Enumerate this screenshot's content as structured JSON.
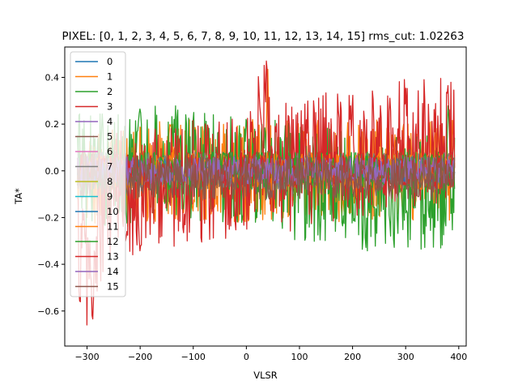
{
  "chart_data": {
    "type": "line",
    "title": "PIXEL: [0, 1, 2, 3, 4, 5, 6, 7, 8, 9, 10, 11, 12, 13, 14, 15]   rms_cut: 1.02263",
    "xlabel": "VLSR",
    "ylabel": "TA*",
    "xlim": [
      -342,
      414
    ],
    "ylim": [
      -0.75,
      0.53
    ],
    "xticks": [
      -300,
      -200,
      -100,
      0,
      100,
      200,
      300,
      400
    ],
    "yticks": [
      -0.6,
      -0.4,
      -0.2,
      0.0,
      0.2,
      0.4
    ],
    "grid": false,
    "legend_position": "upper-left",
    "x_range": [
      -318,
      392
    ],
    "series": [
      {
        "name": "0",
        "color": "#1f77b4",
        "center": [
          [
            -318,
            0.0
          ],
          [
            392,
            0.0
          ]
        ],
        "amp": 0.04
      },
      {
        "name": "1",
        "color": "#ff7f0e",
        "center": [
          [
            -318,
            -0.05
          ],
          [
            -150,
            0.0
          ],
          [
            30,
            0.0
          ],
          [
            50,
            0.0
          ],
          [
            392,
            0.0
          ]
        ],
        "amp": 0.22,
        "peaks": [
          [
            40,
            0.51
          ]
        ]
      },
      {
        "name": "2",
        "color": "#2ca02c",
        "center": [
          [
            -318,
            0.02
          ],
          [
            -250,
            0.0
          ],
          [
            -150,
            0.05
          ],
          [
            0,
            0.0
          ],
          [
            100,
            -0.05
          ],
          [
            250,
            -0.1
          ],
          [
            392,
            -0.08
          ]
        ],
        "amp": 0.25,
        "peaks": [
          [
            -200,
            0.3
          ],
          [
            -100,
            0.27
          ],
          [
            0,
            0.24
          ],
          [
            380,
            0.3
          ]
        ]
      },
      {
        "name": "3",
        "color": "#d62728",
        "center": [
          [
            -318,
            -0.3
          ],
          [
            -300,
            -0.4
          ],
          [
            -250,
            -0.1
          ],
          [
            -150,
            -0.05
          ],
          [
            0,
            0.0
          ],
          [
            35,
            0.2
          ],
          [
            50,
            0.0
          ],
          [
            200,
            0.08
          ],
          [
            300,
            0.12
          ],
          [
            392,
            0.15
          ]
        ],
        "amp": 0.28,
        "peaks": [
          [
            -290,
            -0.7
          ],
          [
            -200,
            -0.37
          ],
          [
            38,
            0.51
          ],
          [
            200,
            0.36
          ],
          [
            300,
            0.39
          ],
          [
            380,
            0.4
          ]
        ]
      },
      {
        "name": "4",
        "color": "#9467bd",
        "center": [
          [
            -318,
            0.0
          ],
          [
            392,
            0.0
          ]
        ],
        "amp": 0.05
      },
      {
        "name": "5",
        "color": "#8c564b",
        "center": [
          [
            -318,
            0.0
          ],
          [
            392,
            0.0
          ]
        ],
        "amp": 0.06
      },
      {
        "name": "6",
        "color": "#e377c2",
        "center": [
          [
            -318,
            0.0
          ],
          [
            392,
            0.0
          ]
        ],
        "amp": 0.05
      },
      {
        "name": "7",
        "color": "#7f7f7f",
        "center": [
          [
            -318,
            0.0
          ],
          [
            392,
            0.0
          ]
        ],
        "amp": 0.08
      },
      {
        "name": "8",
        "color": "#bcbd22",
        "center": [
          [
            -318,
            0.0
          ],
          [
            392,
            0.0
          ]
        ],
        "amp": 0.04
      },
      {
        "name": "9",
        "color": "#17becf",
        "center": [
          [
            -318,
            0.0
          ],
          [
            392,
            0.0
          ]
        ],
        "amp": 0.04
      },
      {
        "name": "10",
        "color": "#1f77b4",
        "center": [
          [
            -318,
            0.0
          ],
          [
            392,
            0.0
          ]
        ],
        "amp": 0.05
      },
      {
        "name": "11",
        "color": "#ff7f0e",
        "center": [
          [
            -318,
            0.0
          ],
          [
            392,
            0.0
          ]
        ],
        "amp": 0.08
      },
      {
        "name": "12",
        "color": "#2ca02c",
        "center": [
          [
            -318,
            0.0
          ],
          [
            392,
            0.0
          ]
        ],
        "amp": 0.08
      },
      {
        "name": "13",
        "color": "#d62728",
        "center": [
          [
            -318,
            0.0
          ],
          [
            392,
            0.0
          ]
        ],
        "amp": 0.08
      },
      {
        "name": "14",
        "color": "#9467bd",
        "center": [
          [
            -318,
            0.0
          ],
          [
            392,
            0.0
          ]
        ],
        "amp": 0.06
      },
      {
        "name": "15",
        "color": "#8c564b",
        "center": [
          [
            -318,
            -0.02
          ],
          [
            392,
            -0.03
          ]
        ],
        "amp": 0.1
      }
    ]
  }
}
